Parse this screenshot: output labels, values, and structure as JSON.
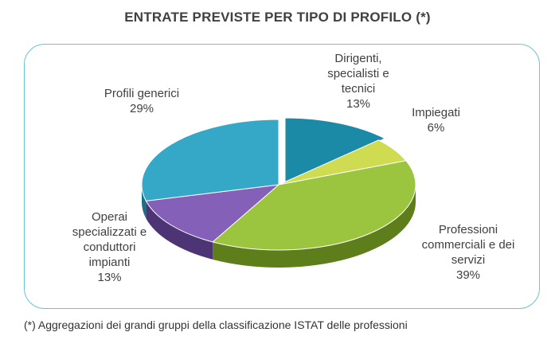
{
  "chart_data": {
    "type": "pie",
    "title": "ENTRATE PREVISTE PER TIPO DI PROFILO (*)",
    "slices": [
      {
        "label_lines": [
          "Dirigenti,",
          "specialisti e",
          "tecnici"
        ],
        "value": 13,
        "value_label": "13%",
        "color": "#1b8aa6",
        "side": "#0d5b70"
      },
      {
        "label_lines": [
          "Impiegati"
        ],
        "value": 6,
        "value_label": "6%",
        "color": "#cfdc52",
        "side": "#8f9a2a"
      },
      {
        "label_lines": [
          "Professioni",
          "commerciali e dei",
          "servizi"
        ],
        "value": 39,
        "value_label": "39%",
        "color": "#9bc43f",
        "side": "#5e7d1b"
      },
      {
        "label_lines": [
          "Operai",
          "specializzati e",
          "conduttori",
          "impianti"
        ],
        "value": 13,
        "value_label": "13%",
        "color": "#8560b8",
        "side": "#4d3475"
      },
      {
        "label_lines": [
          "Profili generici"
        ],
        "value": 29,
        "value_label": "29%",
        "color": "#35a8c8",
        "side": "#1e6f86"
      }
    ],
    "footnote": "(*) Aggregazioni dei grandi gruppi della classificazione ISTAT delle professioni"
  }
}
